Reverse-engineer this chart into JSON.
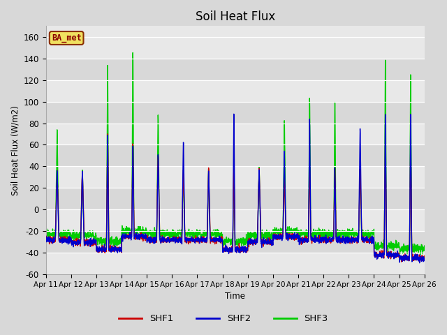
{
  "title": "Soil Heat Flux",
  "ylabel": "Soil Heat Flux (W/m2)",
  "xlabel": "Time",
  "ylim": [
    -60,
    170
  ],
  "yticks": [
    -60,
    -40,
    -20,
    0,
    20,
    40,
    60,
    80,
    100,
    120,
    140,
    160
  ],
  "colors": {
    "SHF1": "#cc0000",
    "SHF2": "#0000cc",
    "SHF3": "#00cc00"
  },
  "legend_label": "BA_met",
  "fig_bg": "#d8d8d8",
  "plot_bg": "#e8e8e8",
  "band_colors": [
    "#e0e0e0",
    "#d0d0d0"
  ],
  "line_width": 1.0,
  "date_labels": [
    "Apr 11",
    "Apr 12",
    "Apr 13",
    "Apr 14",
    "Apr 15",
    "Apr 16",
    "Apr 17",
    "Apr 18",
    "Apr 19",
    "Apr 20",
    "Apr 21",
    "Apr 22",
    "Apr 23",
    "Apr 24",
    "Apr 25",
    "Apr 26"
  ]
}
